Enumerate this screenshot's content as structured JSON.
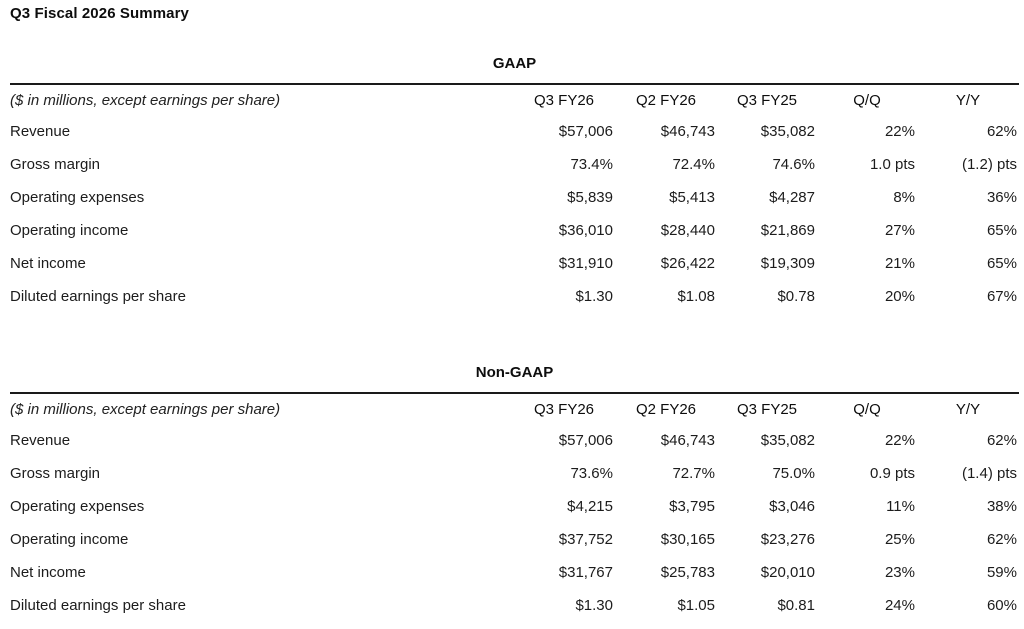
{
  "page_title": "Q3 Fiscal 2026 Summary",
  "colors": {
    "background": "#ffffff",
    "text": "#1c1c1c",
    "rule": "#1a1a1a"
  },
  "tables": [
    {
      "title": "GAAP",
      "unit_note": "($ in millions, except earnings per share)",
      "columns": [
        "Q3 FY26",
        "Q2 FY26",
        "Q3 FY25",
        "Q/Q",
        "Y/Y"
      ],
      "rows": [
        {
          "label": "Revenue",
          "values": [
            "$57,006",
            "$46,743",
            "$35,082",
            "22%",
            "62%"
          ]
        },
        {
          "label": "Gross margin",
          "values": [
            "73.4%",
            "72.4%",
            "74.6%",
            "1.0 pts",
            "(1.2) pts"
          ]
        },
        {
          "label": "Operating expenses",
          "values": [
            "$5,839",
            "$5,413",
            "$4,287",
            "8%",
            "36%"
          ]
        },
        {
          "label": "Operating income",
          "values": [
            "$36,010",
            "$28,440",
            "$21,869",
            "27%",
            "65%"
          ]
        },
        {
          "label": "Net income",
          "values": [
            "$31,910",
            "$26,422",
            "$19,309",
            "21%",
            "65%"
          ]
        },
        {
          "label": "Diluted earnings per share",
          "values": [
            "$1.30",
            "$1.08",
            "$0.78",
            "20%",
            "67%"
          ]
        }
      ]
    },
    {
      "title": "Non-GAAP",
      "unit_note": "($ in millions, except earnings per share)",
      "columns": [
        "Q3 FY26",
        "Q2 FY26",
        "Q3 FY25",
        "Q/Q",
        "Y/Y"
      ],
      "rows": [
        {
          "label": "Revenue",
          "values": [
            "$57,006",
            "$46,743",
            "$35,082",
            "22%",
            "62%"
          ]
        },
        {
          "label": "Gross margin",
          "values": [
            "73.6%",
            "72.7%",
            "75.0%",
            "0.9 pts",
            "(1.4) pts"
          ]
        },
        {
          "label": "Operating expenses",
          "values": [
            "$4,215",
            "$3,795",
            "$3,046",
            "11%",
            "38%"
          ]
        },
        {
          "label": "Operating income",
          "values": [
            "$37,752",
            "$30,165",
            "$23,276",
            "25%",
            "62%"
          ]
        },
        {
          "label": "Net income",
          "values": [
            "$31,767",
            "$25,783",
            "$20,010",
            "23%",
            "59%"
          ]
        },
        {
          "label": "Diluted earnings per share",
          "values": [
            "$1.30",
            "$1.05",
            "$0.81",
            "24%",
            "60%"
          ]
        }
      ]
    }
  ]
}
